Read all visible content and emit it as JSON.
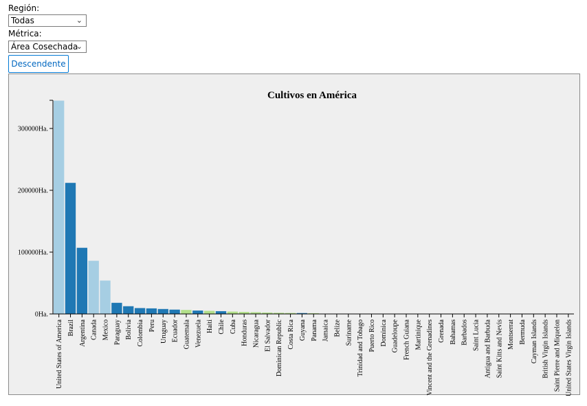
{
  "filters": {
    "region_label": "Región:",
    "region_value": "Todas",
    "metric_label": "Métrica:",
    "metric_value": "Área Cosechada",
    "sort_button": "Descendente"
  },
  "colors": {
    "light_blue": "#a6cee3",
    "dark_blue": "#1f78b4",
    "light_green": "#b2df8a"
  },
  "chart_data": {
    "type": "bar",
    "title": "Cultivos en América",
    "ylabel": "",
    "xlabel": "",
    "ylim": [
      0,
      350000
    ],
    "yticks": [
      0,
      100000,
      200000,
      300000
    ],
    "ytick_labels": [
      "0Ha.",
      "100000Ha.",
      "200000Ha.",
      "300000Ha."
    ],
    "grid": false,
    "categories": [
      "United States of America",
      "Brazil",
      "Argentina",
      "Canada",
      "Mexico",
      "Paraguay",
      "Bolivia",
      "Colombia",
      "Peru",
      "Uruguay",
      "Ecuador",
      "Guatemala",
      "Venezuela",
      "Haiti",
      "Chile",
      "Cuba",
      "Honduras",
      "Nicaragua",
      "El Salvador",
      "Dominican Republic",
      "Costa Rica",
      "Guyana",
      "Panama",
      "Jamaica",
      "Belize",
      "Suriname",
      "Trinidad and Tobago",
      "Puerto Rico",
      "Dominica",
      "Guadeloupe",
      "French Guiana",
      "Martinique",
      "Saint Vincent and the Grenadines",
      "Grenada",
      "Bahamas",
      "Barbados",
      "Saint Lucia",
      "Antigua and Barbuda",
      "Saint Kitts and Nevis",
      "Montserrat",
      "Bermuda",
      "Cayman Islands",
      "British Virgin Islands",
      "Saint Pierre and Miquelon",
      "United States Virgin Islands"
    ],
    "values": [
      345000,
      212000,
      107000,
      86000,
      54000,
      18000,
      12500,
      9500,
      9000,
      8000,
      7000,
      6500,
      5500,
      5000,
      4500,
      3800,
      3300,
      2800,
      2300,
      1900,
      1600,
      1400,
      1200,
      500,
      400,
      300,
      200,
      150,
      100,
      80,
      60,
      50,
      40,
      30,
      20,
      15,
      12,
      10,
      8,
      5,
      3,
      2,
      1,
      1,
      1
    ],
    "bar_colors": [
      "light_blue",
      "dark_blue",
      "dark_blue",
      "light_blue",
      "light_blue",
      "dark_blue",
      "dark_blue",
      "dark_blue",
      "dark_blue",
      "dark_blue",
      "dark_blue",
      "light_green",
      "dark_blue",
      "light_green",
      "dark_blue",
      "light_green",
      "light_green",
      "light_green",
      "light_green",
      "light_green",
      "light_green",
      "dark_blue",
      "light_green",
      "light_green",
      "light_green",
      "dark_blue",
      "light_green",
      "light_green",
      "light_green",
      "light_green",
      "dark_blue",
      "light_green",
      "light_green",
      "light_green",
      "light_green",
      "light_green",
      "light_green",
      "light_green",
      "light_green",
      "light_green",
      "light_green",
      "light_green",
      "light_green",
      "light_green",
      "light_green"
    ]
  }
}
